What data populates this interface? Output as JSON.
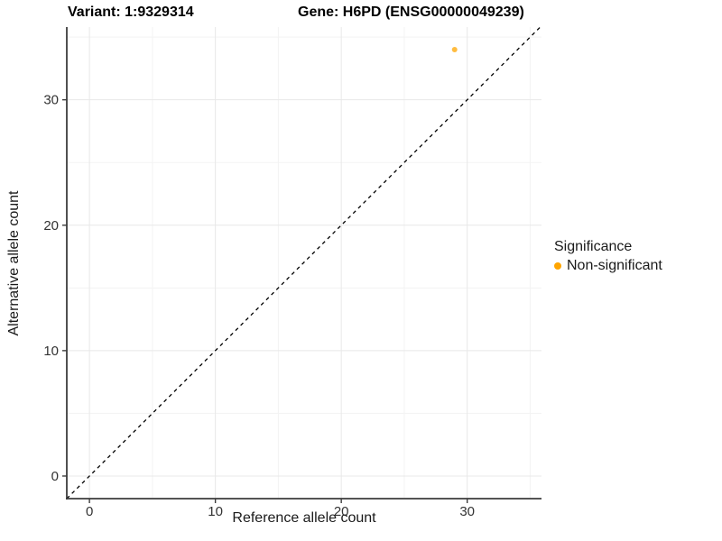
{
  "chart_data": {
    "type": "scatter",
    "titles": [
      "Variant: 1:9329314",
      "Gene: H6PD (ENSG00000049239)"
    ],
    "xlabel": "Reference allele count",
    "ylabel": "Alternative allele count",
    "xlim": [
      -1.8,
      35.9
    ],
    "ylim": [
      -1.8,
      35.8
    ],
    "x_ticks": [
      0,
      10,
      20,
      30
    ],
    "y_ticks": [
      0,
      10,
      20,
      30
    ],
    "x_minor_ticks": [
      5,
      15,
      25,
      35
    ],
    "y_minor_ticks": [
      5,
      15,
      25,
      35
    ],
    "grid": true,
    "reference_line": {
      "type": "identity",
      "style": "dashed",
      "color": "#000000"
    },
    "series": [
      {
        "name": "Non-significant",
        "color": "#FFA500",
        "point_opacity": 0.75,
        "points": [
          {
            "x": 29,
            "y": 34
          }
        ]
      }
    ],
    "legend": {
      "title": "Significance",
      "position": "right",
      "items": [
        {
          "label": "Non-significant",
          "color": "#FFA500"
        }
      ]
    },
    "style": {
      "background": "#ffffff",
      "grid_major_color": "#e8e8e8",
      "grid_minor_color": "#f3f3f3",
      "axis_line_color": "#3c3c3c",
      "tick_label_color": "#333333",
      "point_color": "#FFA500"
    }
  }
}
